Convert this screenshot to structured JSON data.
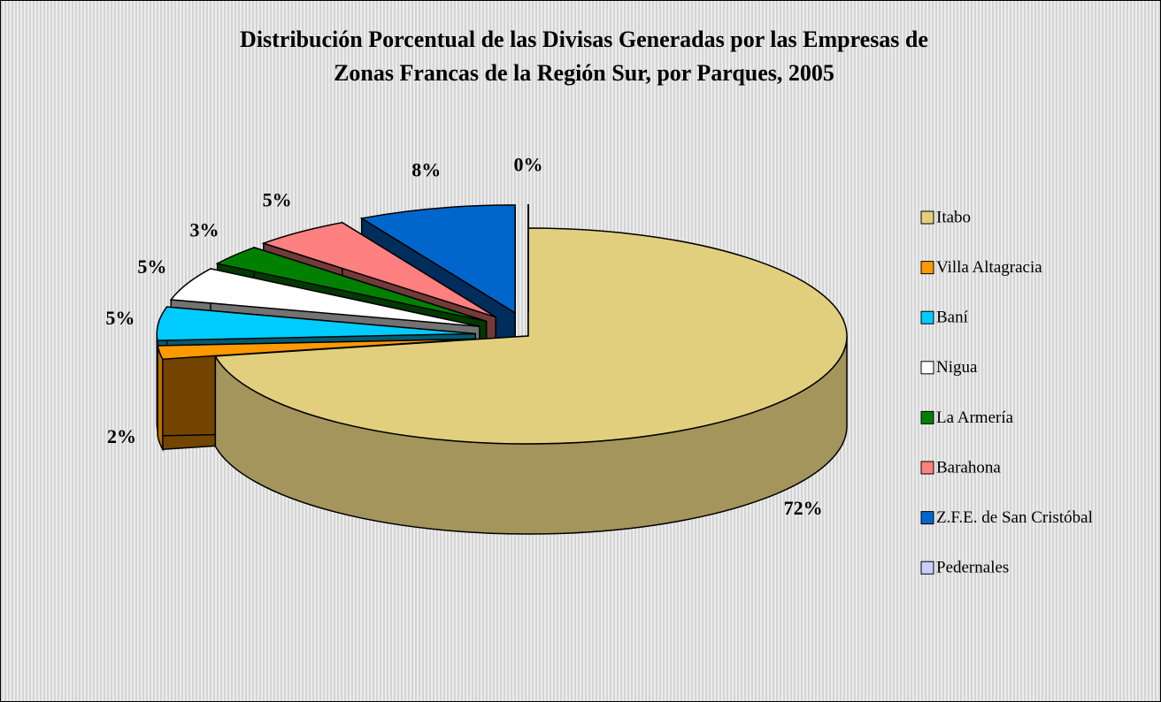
{
  "chart_data": {
    "type": "pie",
    "title": [
      "Distribución Porcentual de las Divisas Generadas por las  Empresas de",
      "Zonas Francas de la Región Sur, por Parques,  2005"
    ],
    "categories": [
      "Itabo",
      "Villa Altagracia",
      "Baní",
      "Nigua",
      "La Armería",
      "Barahona",
      "Z.F.E. de San Cristóbal",
      "Pedernales"
    ],
    "values": [
      72,
      2,
      5,
      5,
      3,
      5,
      8,
      0
    ],
    "value_labels": [
      "72%",
      "2%",
      "5%",
      "5%",
      "3%",
      "5%",
      "8%",
      "0%"
    ],
    "colors": [
      "#e2cf7e",
      "#ff9900",
      "#00ccff",
      "#ffffff",
      "#008000",
      "#ff8080",
      "#0066cc",
      "#ccccff"
    ],
    "legend": "right"
  }
}
